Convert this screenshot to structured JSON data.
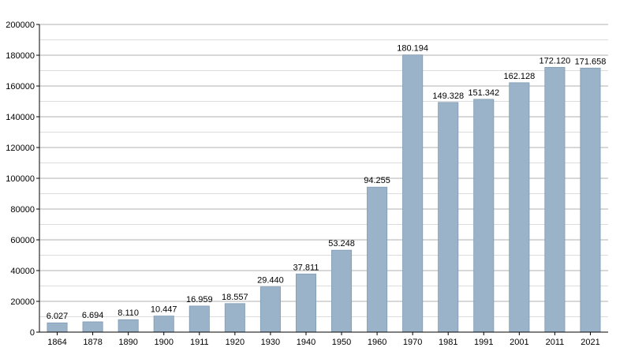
{
  "chart_data": {
    "type": "bar",
    "title": "",
    "xlabel": "",
    "ylabel": "",
    "categories": [
      "1864",
      "1878",
      "1890",
      "1900",
      "1911",
      "1920",
      "1930",
      "1940",
      "1950",
      "1960",
      "1970",
      "1981",
      "1991",
      "2001",
      "2011",
      "2021"
    ],
    "values": [
      6027,
      6694,
      8110,
      10447,
      16959,
      18557,
      29440,
      37811,
      53248,
      94255,
      180194,
      149328,
      151342,
      162128,
      172120,
      171658
    ],
    "value_labels": [
      "6.027",
      "6.694",
      "8.110",
      "10.447",
      "16.959",
      "18.557",
      "29.440",
      "37.811",
      "53.248",
      "94.255",
      "180.194",
      "149.328",
      "151.342",
      "162.128",
      "172.120",
      "171.658"
    ],
    "ylim": [
      0,
      200000
    ],
    "y_ticks": [
      "0",
      "20000",
      "40000",
      "60000",
      "80000",
      "100000",
      "120000",
      "140000",
      "160000",
      "180000",
      "200000"
    ],
    "grid": true,
    "colors": {
      "bar": "#9bb3c9",
      "bar_edge": "#7f9ab3",
      "grid_major": "#b0b0b0",
      "grid_minor": "#dcdcdc",
      "axis": "#000000"
    }
  }
}
